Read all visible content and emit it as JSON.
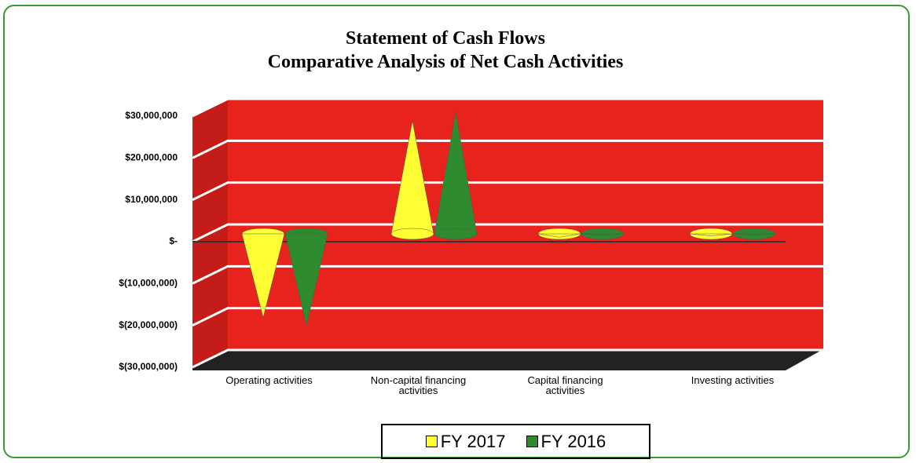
{
  "chart_data": {
    "type": "cone",
    "title": "Statement of Cash Flows",
    "subtitle": "Comparative Analysis of Net Cash Activities",
    "categories": [
      "Operating activities",
      "Non-capital financing activities",
      "Capital financing activities",
      "Investing activities"
    ],
    "series": [
      {
        "name": "FY 2017",
        "color": "#ffff33",
        "values": [
          -20000000,
          27000000,
          -800000,
          -500000
        ]
      },
      {
        "name": "FY 2016",
        "color": "#2e8b2e",
        "values": [
          -22000000,
          29000000,
          -400000,
          -300000
        ]
      }
    ],
    "ylim": [
      -30000000,
      30000000
    ],
    "yticks": [
      {
        "value": 30000000,
        "label": "$30,000,000"
      },
      {
        "value": 20000000,
        "label": "$20,000,000"
      },
      {
        "value": 10000000,
        "label": "$10,000,000"
      },
      {
        "value": 0,
        "label": "$-"
      },
      {
        "value": -10000000,
        "label": "$(10,000,000)"
      },
      {
        "value": -20000000,
        "label": "$(20,000,000)"
      },
      {
        "value": -30000000,
        "label": "$(30,000,000)"
      }
    ],
    "grid": true,
    "legend": "bottom"
  }
}
